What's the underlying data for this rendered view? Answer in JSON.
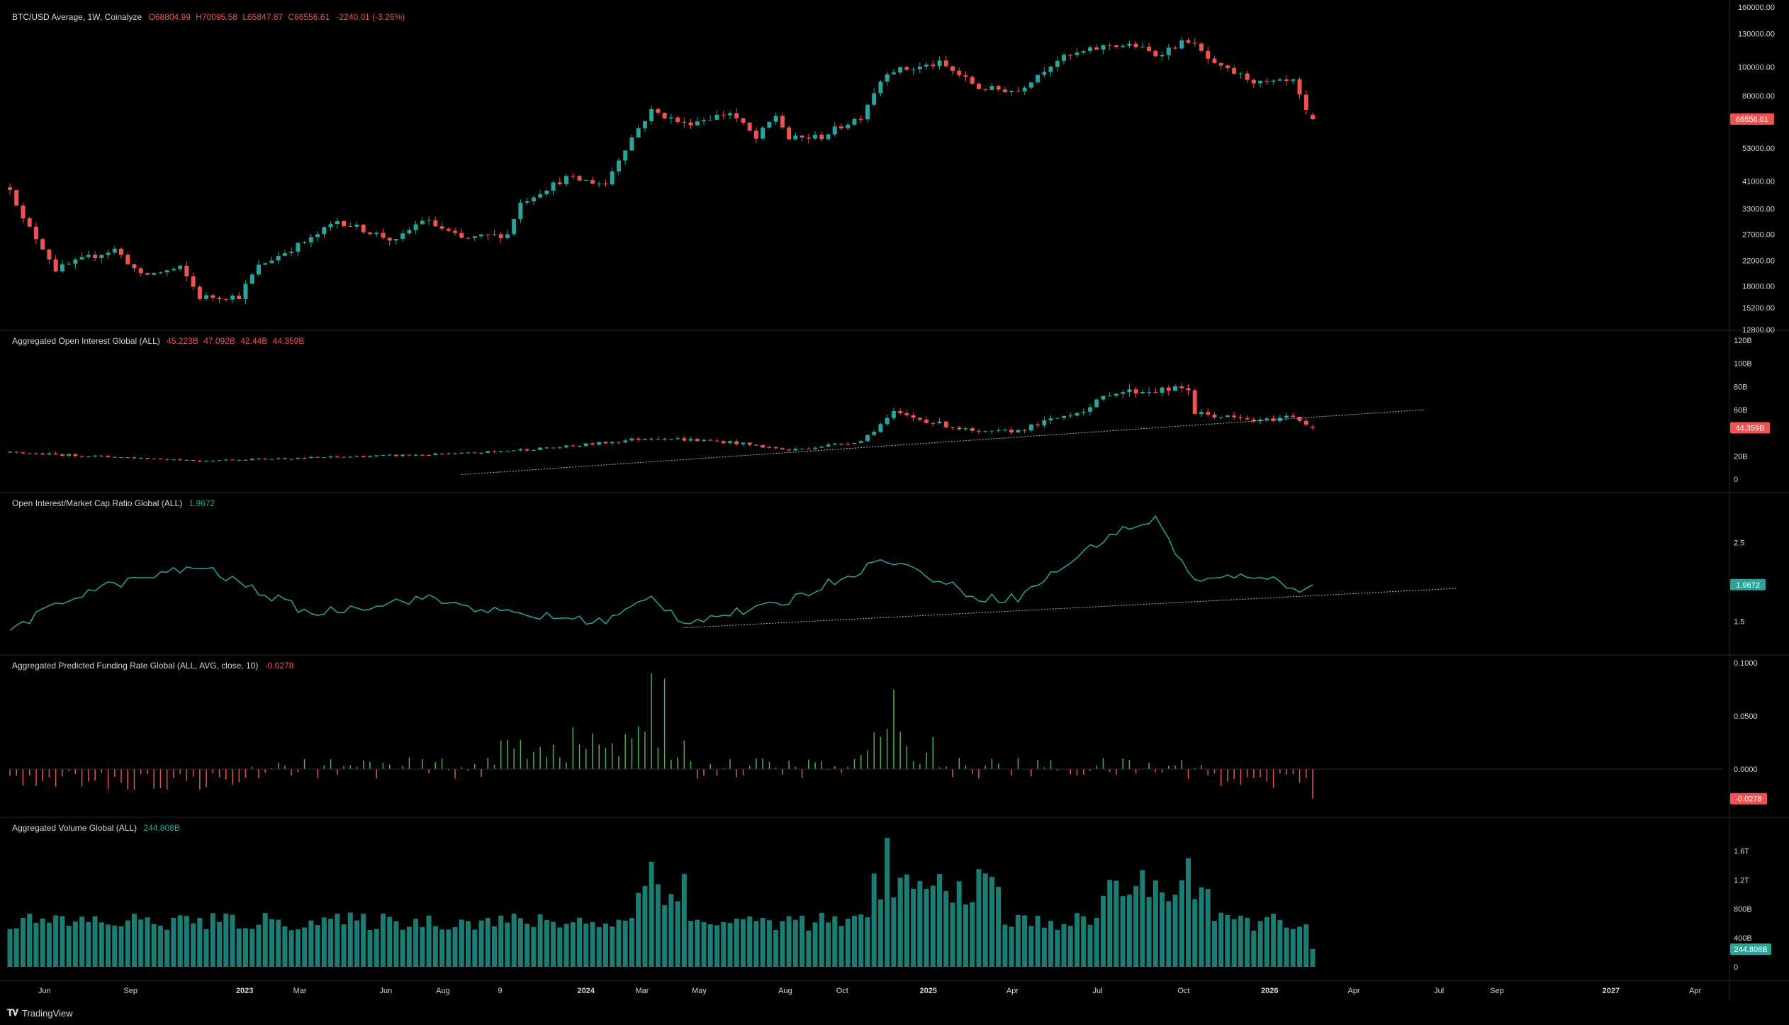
{
  "panes": {
    "price": {
      "symbol": "BTC/USD Average, 1W, Coinalyze",
      "ohlc": [
        "O68804.99",
        "H70095.58",
        "L65847.87",
        "C66556.61"
      ],
      "change": "-2240.01 (-3.26%)",
      "last_label": "66556.61",
      "ticks": [
        "160000.00",
        "130000.00",
        "100000.00",
        "80000.00",
        "66556.61",
        "53000.00",
        "41000.00",
        "33000.00",
        "27000.00",
        "22000.00",
        "18000.00",
        "15200.00",
        "12800.00"
      ]
    },
    "oi": {
      "title": "Aggregated Open Interest Global (ALL)",
      "values": [
        "45.223B",
        "47.092B",
        "42.44B",
        "44.359B"
      ],
      "last_label": "44.359B",
      "ticks": [
        "120B",
        "100B",
        "80B",
        "60B",
        "20B",
        "0"
      ]
    },
    "ratio": {
      "title": "Open Interest/Market Cap Ratio Global (ALL)",
      "value": "1.9672",
      "last_label": "1.9672",
      "ticks": [
        "2.5",
        "1.5"
      ]
    },
    "funding": {
      "title": "Aggregated Predicted Funding Rate Global (ALL, AVG, close, 10)",
      "value": "-0.0278",
      "last_label": "-0.0278",
      "ticks": [
        "0.1000",
        "0.0500",
        "0.0000"
      ]
    },
    "volume": {
      "title": "Aggregated Volume Global (ALL)",
      "value": "244.808B",
      "last_label": "244.808B",
      "ticks": [
        "1.6T",
        "1.2T",
        "800B",
        "400B",
        "0"
      ]
    }
  },
  "time_axis": [
    "Jun",
    "Sep",
    "2023",
    "Mar",
    "Jun",
    "Aug",
    "9",
    "2024",
    "Mar",
    "May",
    "Aug",
    "Oct",
    "2025",
    "Apr",
    "Jul",
    "Oct",
    "2026",
    "Apr",
    "Jul",
    "Sep",
    "2027",
    "Apr"
  ],
  "branding": "TradingView",
  "colors": {
    "up": "#26a69a",
    "down": "#ef5350",
    "bg": "#000000",
    "grid": "#1e222d",
    "text": "#d1d4dc",
    "funding_pos": "#4caf50",
    "funding_neg": "#ef5350",
    "trendline": "#b2b5be"
  },
  "chart_data": [
    {
      "type": "candlestick",
      "title": "BTC/USD Average, 1W, Coinalyze",
      "scale": "log",
      "ylim": [
        12800,
        160000
      ],
      "x": [
        "2022-04-25",
        "2026-02-16"
      ],
      "series": [
        {
          "name": "BTC/USD",
          "ohlc_first": [
            40400,
            40400,
            38000,
            39000
          ],
          "ohlc_last": [
            68804.99,
            70095.58,
            65847.87,
            66556.61
          ]
        }
      ],
      "path_close": [
        [
          "2022-04-25",
          39000
        ],
        [
          "2022-05-09",
          30200
        ],
        [
          "2022-06-13",
          20500
        ],
        [
          "2022-07-18",
          22500
        ],
        [
          "2022-08-15",
          24000
        ],
        [
          "2022-09-12",
          19500
        ],
        [
          "2022-10-24",
          20700
        ],
        [
          "2022-11-14",
          16500
        ],
        [
          "2022-12-26",
          16600
        ],
        [
          "2023-01-16",
          21000
        ],
        [
          "2023-03-13",
          26000
        ],
        [
          "2023-04-10",
          30000
        ],
        [
          "2023-06-12",
          25500
        ],
        [
          "2023-07-10",
          30300
        ],
        [
          "2023-08-21",
          26000
        ],
        [
          "2023-10-09",
          27000
        ],
        [
          "2023-10-23",
          34500
        ],
        [
          "2023-12-11",
          42000
        ],
        [
          "2024-01-22",
          40000
        ],
        [
          "2024-02-26",
          62000
        ],
        [
          "2024-03-11",
          71000
        ],
        [
          "2024-04-15",
          64000
        ],
        [
          "2024-06-03",
          70000
        ],
        [
          "2024-07-01",
          57000
        ],
        [
          "2024-07-22",
          68500
        ],
        [
          "2024-08-05",
          57000
        ],
        [
          "2024-09-09",
          58000
        ],
        [
          "2024-10-21",
          68000
        ],
        [
          "2024-11-18",
          97000
        ],
        [
          "2024-12-16",
          99000
        ],
        [
          "2025-01-13",
          103000
        ],
        [
          "2025-02-24",
          85000
        ],
        [
          "2025-04-07",
          83000
        ],
        [
          "2025-05-19",
          106000
        ],
        [
          "2025-07-14",
          119000
        ],
        [
          "2025-08-11",
          118000
        ],
        [
          "2025-09-01",
          110000
        ],
        [
          "2025-10-06",
          123500
        ],
        [
          "2025-11-03",
          101000
        ],
        [
          "2025-12-22",
          88000
        ],
        [
          "2026-01-26",
          89000
        ],
        [
          "2026-02-09",
          70000
        ],
        [
          "2026-02-16",
          66556.61
        ]
      ]
    },
    {
      "type": "candlestick",
      "title": "Aggregated Open Interest Global (ALL)",
      "ylim": [
        0,
        120000000000
      ],
      "series": [
        {
          "name": "Open Interest",
          "last": [
            45223000000.0,
            47092000000.0,
            42440000000.0,
            44359000000.0
          ]
        }
      ],
      "path_close": [
        [
          "2022-04-25",
          23000000000.0
        ],
        [
          "2022-11-14",
          16000000000.0
        ],
        [
          "2023-08-21",
          22000000000.0
        ],
        [
          "2023-12-11",
          28000000000.0
        ],
        [
          "2024-03-11",
          36000000000.0
        ],
        [
          "2024-06-03",
          32000000000.0
        ],
        [
          "2024-08-05",
          25000000000.0
        ],
        [
          "2024-10-21",
          33000000000.0
        ],
        [
          "2024-11-25",
          57000000000.0
        ],
        [
          "2025-02-24",
          40000000000.0
        ],
        [
          "2025-04-07",
          42000000000.0
        ],
        [
          "2025-06-23",
          62000000000.0
        ],
        [
          "2025-07-14",
          75000000000.0
        ],
        [
          "2025-10-06",
          78000000000.0
        ],
        [
          "2025-10-13",
          57000000000.0
        ],
        [
          "2025-12-22",
          50000000000.0
        ],
        [
          "2026-01-26",
          55000000000.0
        ],
        [
          "2026-02-16",
          44359000000.0
        ]
      ]
    },
    {
      "type": "line",
      "title": "Open Interest/Market Cap Ratio Global (ALL)",
      "series": [
        {
          "name": "OI/MCap",
          "last": 1.9672
        }
      ],
      "path": [
        [
          "2022-04-25",
          1.4
        ],
        [
          "2022-07-18",
          1.9
        ],
        [
          "2022-11-14",
          2.2
        ],
        [
          "2023-03-13",
          1.6
        ],
        [
          "2023-07-10",
          1.8
        ],
        [
          "2023-10-09",
          1.6
        ],
        [
          "2024-01-22",
          1.5
        ],
        [
          "2024-03-11",
          1.8
        ],
        [
          "2024-04-15",
          1.5
        ],
        [
          "2024-07-22",
          1.7
        ],
        [
          "2024-11-18",
          2.3
        ],
        [
          "2025-02-24",
          1.8
        ],
        [
          "2025-04-07",
          1.8
        ],
        [
          "2025-07-14",
          2.6
        ],
        [
          "2025-09-01",
          2.8
        ],
        [
          "2025-10-13",
          2.0
        ],
        [
          "2025-12-22",
          2.1
        ],
        [
          "2026-01-26",
          1.9
        ],
        [
          "2026-02-16",
          1.9672
        ]
      ]
    },
    {
      "type": "bar",
      "title": "Aggregated Predicted Funding Rate Global (ALL, AVG, close, 10)",
      "ylim": [
        -0.03,
        0.1
      ],
      "series": [
        {
          "name": "Funding Rate",
          "last": -0.0278
        }
      ],
      "notes_values": [
        [
          "2024-03-11",
          0.09
        ],
        [
          "2024-03-25",
          0.085
        ],
        [
          "2024-11-25",
          0.075
        ],
        [
          "2026-02-16",
          -0.0278
        ]
      ]
    },
    {
      "type": "bar",
      "title": "Aggregated Volume Global (ALL)",
      "ylim": [
        0,
        1600000000000
      ],
      "series": [
        {
          "name": "Volume",
          "last": 244808000000.0
        }
      ],
      "notes_values": [
        [
          "2024-03-11",
          1450000000000.0
        ],
        [
          "2024-11-18",
          1780000000000.0
        ],
        [
          "2025-10-06",
          1500000000000.0
        ],
        [
          "2026-02-16",
          244808000000.0
        ]
      ]
    }
  ]
}
